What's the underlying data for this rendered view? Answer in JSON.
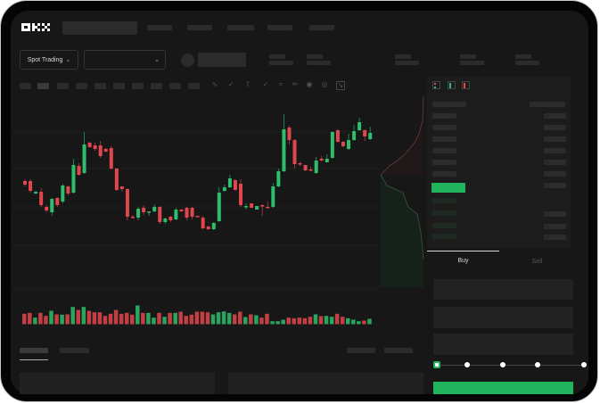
{
  "header": {
    "logo": "OKX",
    "spot_trading_label": "Spot Trading",
    "chevron_icon": "chevron-down-icon"
  },
  "toolbar": {
    "icons": [
      "line-chart-icon",
      "check-icon",
      "indicator-icon",
      "check-icon",
      "wave-icon",
      "pencil-icon",
      "camera-icon",
      "target-icon",
      "expand-icon"
    ]
  },
  "order_book": {
    "view_icons": [
      "both-sides-icon",
      "bids-only-icon",
      "asks-only-icon"
    ]
  },
  "trade_panel": {
    "tabs": [
      {
        "label": "Buy",
        "active": true
      },
      {
        "label": "Sell",
        "active": false
      }
    ],
    "slider_value_percent": 0,
    "slider_stops": [
      0,
      25,
      50,
      75,
      100
    ]
  },
  "colors": {
    "up": "#2ebd6b",
    "down": "#e0474c",
    "accent": "#22b35e",
    "background": "#171717"
  },
  "chart": {
    "type": "candlestick",
    "candles": [
      [
        97,
        93,
        99,
        91
      ],
      [
        97,
        86,
        99,
        84
      ],
      [
        83,
        85,
        86,
        82
      ],
      [
        85,
        70,
        89,
        68
      ],
      [
        68,
        64,
        70,
        62
      ],
      [
        62,
        77,
        78,
        58
      ],
      [
        78,
        70,
        79,
        68
      ],
      [
        74,
        92,
        94,
        72
      ],
      [
        91,
        83,
        92,
        81
      ],
      [
        84,
        115,
        122,
        83
      ],
      [
        114,
        104,
        117,
        103
      ],
      [
        106,
        138,
        152,
        105
      ],
      [
        140,
        135,
        141,
        134
      ],
      [
        137,
        133,
        140,
        131
      ],
      [
        137,
        125,
        142,
        123
      ],
      [
        133,
        130,
        134,
        129
      ],
      [
        134,
        111,
        136,
        110
      ],
      [
        111,
        87,
        112,
        86
      ],
      [
        91,
        88,
        91,
        85
      ],
      [
        88,
        57,
        89,
        53
      ],
      [
        57,
        56,
        59,
        55
      ],
      [
        56,
        66,
        68,
        53
      ],
      [
        67,
        62,
        70,
        59
      ],
      [
        62,
        63,
        63,
        58
      ],
      [
        63,
        68,
        71,
        62
      ],
      [
        68,
        51,
        69,
        49
      ],
      [
        51,
        55,
        56,
        49
      ],
      [
        57,
        53,
        58,
        51
      ],
      [
        54,
        65,
        67,
        53
      ],
      [
        65,
        63,
        66,
        62
      ],
      [
        67,
        56,
        68,
        53
      ],
      [
        67,
        57,
        68,
        54
      ],
      [
        58,
        57,
        58,
        56
      ],
      [
        56,
        44,
        58,
        43
      ],
      [
        46,
        43,
        47,
        42
      ],
      [
        43,
        50,
        51,
        42
      ],
      [
        52,
        84,
        90,
        51
      ],
      [
        86,
        90,
        93,
        85
      ],
      [
        90,
        100,
        104,
        89
      ],
      [
        98,
        87,
        99,
        86
      ],
      [
        94,
        70,
        99,
        68
      ],
      [
        68,
        69,
        72,
        65
      ],
      [
        72,
        67,
        72,
        67
      ],
      [
        65,
        69,
        69,
        65
      ],
      [
        70,
        69,
        71,
        58
      ],
      [
        68,
        67,
        74,
        67
      ],
      [
        68,
        91,
        95,
        67
      ],
      [
        91,
        108,
        111,
        90
      ],
      [
        108,
        155,
        172,
        107
      ],
      [
        157,
        143,
        159,
        138
      ],
      [
        143,
        116,
        144,
        111
      ],
      [
        117,
        116,
        119,
        114
      ],
      [
        115,
        109,
        115,
        108
      ],
      [
        110,
        109,
        113,
        108
      ],
      [
        106,
        120,
        124,
        105
      ],
      [
        122,
        120,
        125,
        119
      ],
      [
        118,
        122,
        127,
        118
      ],
      [
        123,
        152,
        153,
        122
      ],
      [
        154,
        141,
        155,
        140
      ],
      [
        141,
        136,
        142,
        135
      ],
      [
        133,
        143,
        150,
        132
      ],
      [
        143,
        153,
        160,
        142
      ],
      [
        154,
        163,
        168,
        153
      ],
      [
        154,
        147,
        155,
        142
      ],
      [
        144,
        151,
        158,
        143
      ]
    ],
    "volumes": [
      35,
      38,
      22,
      38,
      28,
      45,
      33,
      32,
      33,
      58,
      48,
      58,
      45,
      40,
      40,
      28,
      35,
      48,
      35,
      38,
      32,
      63,
      38,
      38,
      22,
      38,
      25,
      38,
      38,
      42,
      28,
      32,
      42,
      42,
      40,
      33,
      40,
      43,
      38,
      33,
      42,
      24,
      33,
      30,
      22,
      35,
      10,
      10,
      15,
      22,
      20,
      22,
      20,
      25,
      33,
      27,
      28,
      25,
      35,
      25,
      20,
      15,
      10,
      12,
      18
    ]
  }
}
